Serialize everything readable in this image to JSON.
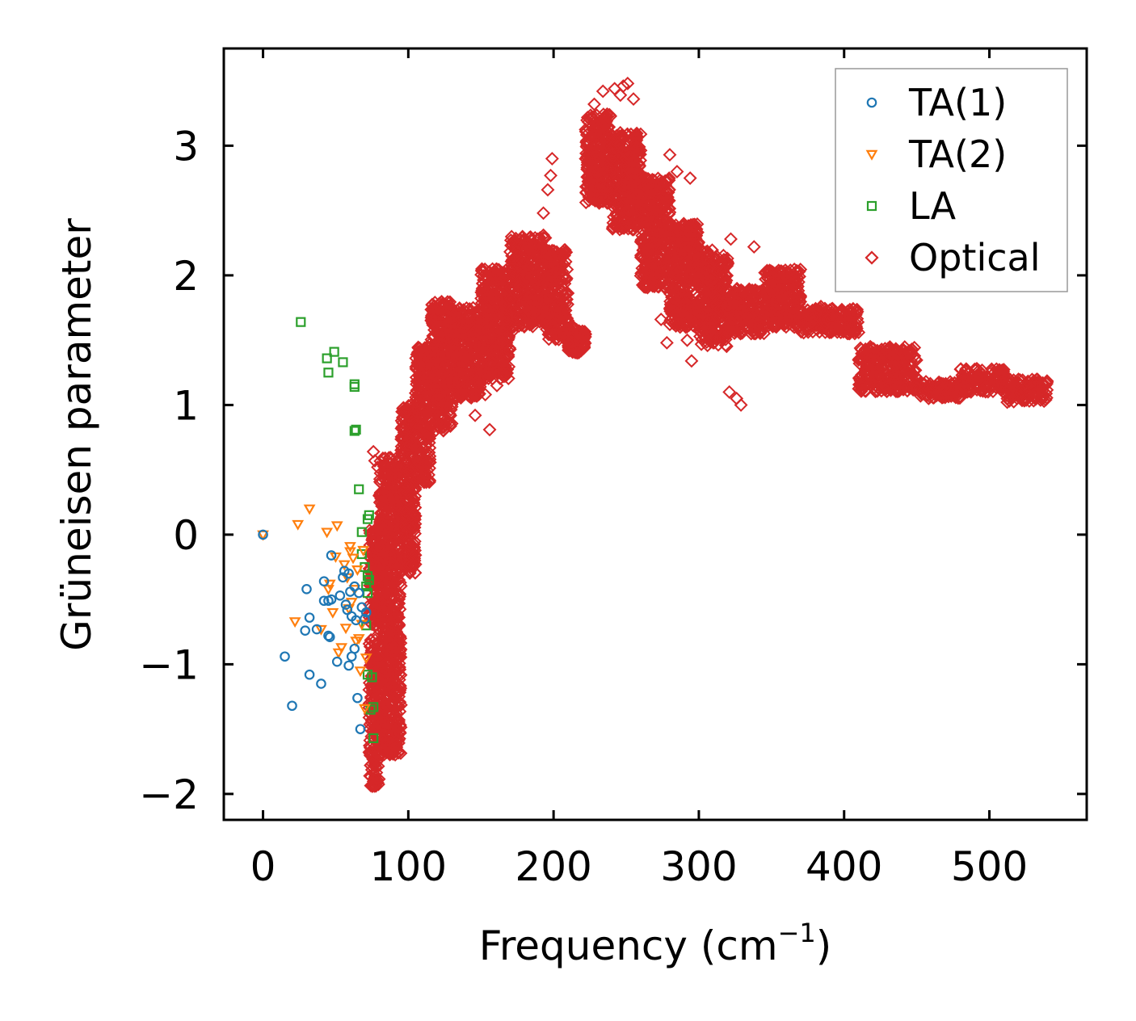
{
  "chart_data": {
    "type": "scatter",
    "title": "",
    "xlabel": "Frequency (cm",
    "xlabel_superscript": "−1",
    "xlabel_suffix": ")",
    "ylabel": "Grüneisen parameter",
    "xlim": [
      -27,
      567
    ],
    "ylim": [
      -2.2,
      3.75
    ],
    "xticks": [
      0,
      100,
      200,
      300,
      400,
      500
    ],
    "xtick_labels": [
      "0",
      "100",
      "200",
      "300",
      "400",
      "500"
    ],
    "yticks": [
      -2,
      -1,
      0,
      1,
      2,
      3
    ],
    "ytick_labels": [
      "−2",
      "−1",
      "0",
      "1",
      "2",
      "3"
    ],
    "grid": false,
    "legend_position": "top-right",
    "series": [
      {
        "name": "TA(1)",
        "marker": "circle",
        "color": "#1f77b4",
        "points": [
          [
            0,
            0.0
          ],
          [
            15,
            -0.94
          ],
          [
            20,
            -1.32
          ],
          [
            30,
            -0.42
          ],
          [
            29,
            -0.74
          ],
          [
            32,
            -0.64
          ],
          [
            32,
            -1.08
          ],
          [
            37,
            -0.73
          ],
          [
            40,
            -1.15
          ],
          [
            42,
            -0.51
          ],
          [
            42,
            -0.36
          ],
          [
            45,
            -0.51
          ],
          [
            45,
            -0.78
          ],
          [
            46,
            -0.79
          ],
          [
            47,
            -0.5
          ],
          [
            47,
            -0.16
          ],
          [
            51,
            -0.98
          ],
          [
            53,
            -0.47
          ],
          [
            55,
            -0.33
          ],
          [
            56,
            -0.28
          ],
          [
            57,
            -0.54
          ],
          [
            58,
            -0.58
          ],
          [
            59,
            -0.3
          ],
          [
            59,
            -1.01
          ],
          [
            60,
            -0.44
          ],
          [
            61,
            -0.63
          ],
          [
            61,
            -0.94
          ],
          [
            63,
            -0.4
          ],
          [
            63,
            -0.88
          ],
          [
            64,
            -0.66
          ],
          [
            65,
            -1.26
          ],
          [
            66,
            -0.45
          ],
          [
            67,
            -1.5
          ],
          [
            68,
            -0.56
          ],
          [
            70,
            -0.65
          ],
          [
            71,
            -0.6
          ]
        ]
      },
      {
        "name": "TA(2)",
        "marker": "triangle-down",
        "color": "#ff7f0e",
        "points": [
          [
            0,
            0.0
          ],
          [
            22,
            -0.67
          ],
          [
            24,
            0.08
          ],
          [
            32,
            0.2
          ],
          [
            40,
            -0.73
          ],
          [
            44,
            0.02
          ],
          [
            45,
            -0.42
          ],
          [
            46,
            -0.38
          ],
          [
            48,
            -0.6
          ],
          [
            50,
            -0.17
          ],
          [
            51,
            0.07
          ],
          [
            52,
            -0.91
          ],
          [
            54,
            -0.87
          ],
          [
            56,
            -0.23
          ],
          [
            57,
            -0.72
          ],
          [
            58,
            -0.33
          ],
          [
            59,
            -0.57
          ],
          [
            60,
            -0.13
          ],
          [
            60,
            -0.09
          ],
          [
            61,
            -0.52
          ],
          [
            62,
            -0.18
          ],
          [
            63,
            -0.42
          ],
          [
            64,
            -0.82
          ],
          [
            65,
            -0.27
          ],
          [
            66,
            -0.8
          ],
          [
            67,
            -1.05
          ],
          [
            68,
            -0.69
          ],
          [
            69,
            -0.12
          ],
          [
            70,
            -1.34
          ],
          [
            71,
            -0.95
          ]
        ]
      },
      {
        "name": "LA",
        "marker": "square",
        "color": "#2ca02c",
        "points": [
          [
            26,
            1.64
          ],
          [
            44,
            1.36
          ],
          [
            45,
            1.25
          ],
          [
            49,
            1.41
          ],
          [
            55,
            1.33
          ],
          [
            63,
            1.14
          ],
          [
            63,
            1.16
          ],
          [
            63,
            0.8
          ],
          [
            64,
            0.81
          ],
          [
            66,
            0.35
          ],
          [
            68,
            0.02
          ],
          [
            68,
            -0.15
          ],
          [
            70,
            -0.25
          ],
          [
            71,
            -0.4
          ],
          [
            71,
            -0.7
          ],
          [
            72,
            0.12
          ],
          [
            72,
            -0.32
          ],
          [
            72,
            -0.45
          ],
          [
            72,
            -1.08
          ],
          [
            73,
            0.15
          ],
          [
            73,
            -0.35
          ],
          [
            74,
            -1.35
          ],
          [
            75,
            -1.1
          ],
          [
            76,
            -1.33
          ],
          [
            76,
            -1.57
          ]
        ]
      },
      {
        "name": "Optical",
        "marker": "diamond",
        "color": "#d62728",
        "envelope": [
          {
            "x0": 73,
            "x1": 80,
            "lo": -1.95,
            "hi": 0.05
          },
          {
            "x0": 80,
            "x1": 95,
            "lo": -1.7,
            "hi": 0.6
          },
          {
            "x0": 95,
            "x1": 105,
            "lo": -0.3,
            "hi": 1.0
          },
          {
            "x0": 105,
            "x1": 115,
            "lo": 0.4,
            "hi": 1.45
          },
          {
            "x0": 115,
            "x1": 130,
            "lo": 0.8,
            "hi": 1.8
          },
          {
            "x0": 130,
            "x1": 150,
            "lo": 1.05,
            "hi": 1.75
          },
          {
            "x0": 150,
            "x1": 170,
            "lo": 1.2,
            "hi": 2.05
          },
          {
            "x0": 170,
            "x1": 195,
            "lo": 1.6,
            "hi": 2.3
          },
          {
            "x0": 195,
            "x1": 210,
            "lo": 1.5,
            "hi": 2.2
          },
          {
            "x0": 210,
            "x1": 222,
            "lo": 1.4,
            "hi": 1.6
          },
          {
            "x0": 222,
            "x1": 240,
            "lo": 2.55,
            "hi": 3.25
          },
          {
            "x0": 240,
            "x1": 260,
            "lo": 2.35,
            "hi": 3.1
          },
          {
            "x0": 260,
            "x1": 280,
            "lo": 1.9,
            "hi": 2.75
          },
          {
            "x0": 280,
            "x1": 300,
            "lo": 1.6,
            "hi": 2.4
          },
          {
            "x0": 300,
            "x1": 320,
            "lo": 1.45,
            "hi": 2.2
          },
          {
            "x0": 320,
            "x1": 345,
            "lo": 1.55,
            "hi": 1.9
          },
          {
            "x0": 345,
            "x1": 370,
            "lo": 1.6,
            "hi": 2.05
          },
          {
            "x0": 370,
            "x1": 410,
            "lo": 1.55,
            "hi": 1.75
          },
          {
            "x0": 410,
            "x1": 450,
            "lo": 1.1,
            "hi": 1.45
          },
          {
            "x0": 450,
            "x1": 480,
            "lo": 1.05,
            "hi": 1.18
          },
          {
            "x0": 480,
            "x1": 510,
            "lo": 1.1,
            "hi": 1.28
          },
          {
            "x0": 510,
            "x1": 540,
            "lo": 1.02,
            "hi": 1.2
          }
        ],
        "outliers": [
          [
            199,
            2.9
          ],
          [
            198,
            2.77
          ],
          [
            196,
            2.66
          ],
          [
            193,
            2.48
          ],
          [
            193,
            2.31
          ],
          [
            248,
            3.46
          ],
          [
            251,
            3.48
          ],
          [
            242,
            3.44
          ],
          [
            246,
            3.39
          ],
          [
            234,
            3.42
          ],
          [
            228,
            3.32
          ],
          [
            255,
            3.36
          ],
          [
            256,
            3.08
          ],
          [
            248,
            2.55
          ],
          [
            280,
            2.93
          ],
          [
            285,
            2.8
          ],
          [
            279,
            2.64
          ],
          [
            294,
            2.75
          ],
          [
            295,
            1.34
          ],
          [
            292,
            1.5
          ],
          [
            291,
            1.6
          ],
          [
            278,
            1.48
          ],
          [
            274,
            1.66
          ],
          [
            322,
            2.28
          ],
          [
            321,
            1.1
          ],
          [
            326,
            1.05
          ],
          [
            329,
            1.0
          ],
          [
            338,
            2.22
          ],
          [
            311,
            1.84
          ],
          [
            384,
            1.76
          ],
          [
            395,
            1.67
          ],
          [
            403,
            1.58
          ],
          [
            410,
            1.56
          ],
          [
            418,
            1.45
          ],
          [
            430,
            1.38
          ],
          [
            435,
            1.3
          ],
          [
            442,
            1.22
          ],
          [
            153,
            1.08
          ],
          [
            146,
            0.92
          ],
          [
            156,
            0.81
          ],
          [
            170,
            1.43
          ],
          [
            178,
            1.9
          ],
          [
            185,
            1.99
          ],
          [
            161,
            1.15
          ],
          [
            172,
            1.57
          ],
          [
            76,
            0.64
          ],
          [
            77,
            0.57
          ],
          [
            79,
            0.52
          ],
          [
            80,
            0.3
          ],
          [
            82,
            0.31
          ],
          [
            86,
            0.29
          ]
        ]
      }
    ]
  }
}
